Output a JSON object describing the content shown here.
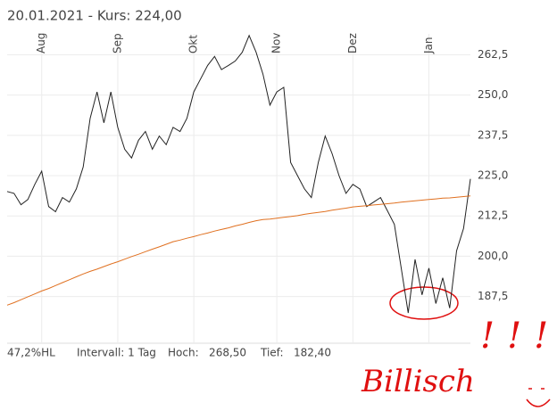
{
  "chart_data": {
    "type": "line",
    "title": "20.01.2021  -  Kurs: 224,00",
    "categories": [
      null,
      null,
      null,
      null,
      null,
      "Aug",
      null,
      null,
      null,
      null,
      null,
      null,
      null,
      null,
      null,
      null,
      "Sep",
      null,
      null,
      null,
      null,
      null,
      null,
      null,
      null,
      null,
      null,
      "Okt",
      null,
      null,
      null,
      null,
      null,
      null,
      null,
      null,
      null,
      null,
      null,
      "Nov",
      null,
      null,
      null,
      null,
      null,
      null,
      null,
      null,
      null,
      null,
      "Dez",
      null,
      null,
      null,
      null,
      null,
      null,
      null,
      null,
      null,
      null,
      "Jan",
      null,
      null,
      null,
      null,
      null,
      null
    ],
    "series": [
      {
        "color": "#222222",
        "values": [
          220.1,
          219.5,
          216,
          217.6,
          222.3,
          226.4,
          215.4,
          213.8,
          218.2,
          216.8,
          220.9,
          227.7,
          242.8,
          251,
          241.4,
          251,
          240,
          233.2,
          230.5,
          236,
          238.7,
          233.2,
          237.3,
          234.6,
          240,
          238.7,
          242.8,
          251,
          255.1,
          259.2,
          262,
          257.9,
          259.2,
          260.6,
          263.3,
          268.5,
          263.3,
          256.5,
          246.9,
          251,
          252.4,
          229.1,
          225,
          220.9,
          218.2,
          229.1,
          237.3,
          231.8,
          225,
          219.5,
          222.3,
          220.9,
          215.4,
          216.8,
          218.2,
          214.1,
          209.9,
          196.3,
          182.4,
          199,
          188,
          196.3,
          185.3,
          193.3,
          183.9,
          201.7,
          208.6,
          224
        ]
      },
      {
        "color": "#e07020",
        "values": [
          184.8,
          185.6,
          186.5,
          187.4,
          188.3,
          189.2,
          190,
          190.9,
          191.8,
          192.7,
          193.6,
          194.5,
          195.3,
          196,
          196.8,
          197.6,
          198.3,
          199.1,
          199.9,
          200.6,
          201.4,
          202.2,
          202.9,
          203.7,
          204.5,
          205,
          205.6,
          206.1,
          206.7,
          207.2,
          207.8,
          208.3,
          208.8,
          209.4,
          209.9,
          210.5,
          211,
          211.4,
          211.5,
          211.8,
          212.1,
          212.3,
          212.6,
          213,
          213.3,
          213.6,
          213.9,
          214.3,
          214.6,
          214.9,
          215.3,
          215.5,
          215.7,
          215.9,
          216.1,
          216.3,
          216.5,
          216.8,
          217,
          217.2,
          217.4,
          217.6,
          217.8,
          218,
          218.1,
          218.3,
          218.5,
          218.7
        ]
      }
    ],
    "ylim": [
      173,
      269
    ],
    "yticks": [
      {
        "value": 187.5,
        "label": "187,5"
      },
      {
        "value": 200,
        "label": "200,0"
      },
      {
        "value": 212.5,
        "label": "212,5"
      },
      {
        "value": 225,
        "label": "225,0"
      },
      {
        "value": 237.5,
        "label": "237,5"
      },
      {
        "value": 250,
        "label": "250,0"
      },
      {
        "value": 262.5,
        "label": "262,5"
      }
    ],
    "grid": true,
    "footer": [
      "47,2%HL",
      "Intervall: 1 Tag",
      "Hoch:   268,50",
      "Tief:   182,40"
    ],
    "annotations": [
      "Billisch",
      "!!!"
    ]
  }
}
